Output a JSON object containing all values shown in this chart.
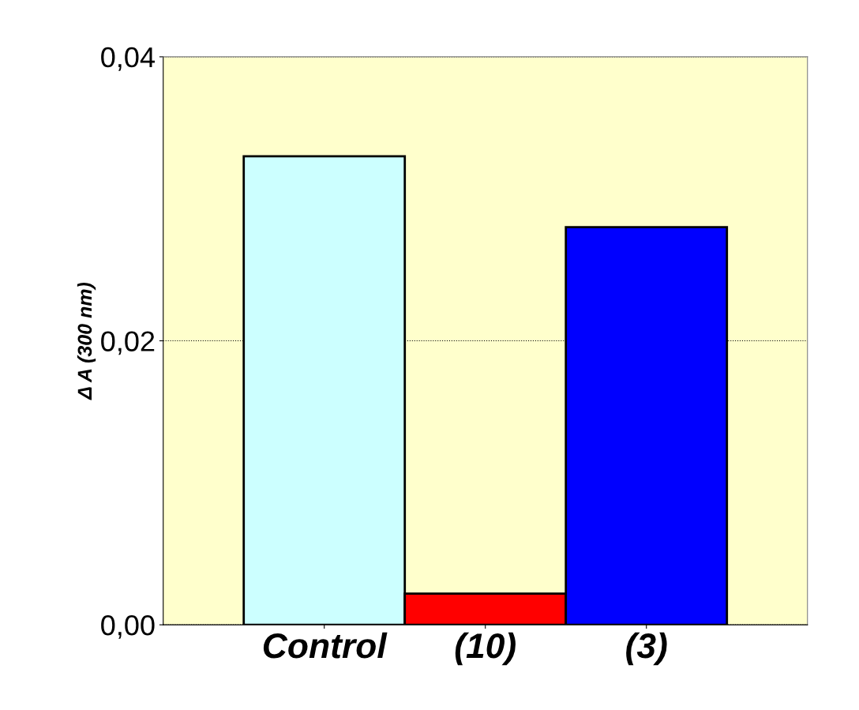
{
  "chart_data": {
    "type": "bar",
    "ylabel": "Δ A (300 nm)",
    "categories": [
      "Control",
      "(10)",
      "(3)"
    ],
    "values": [
      0.033,
      0.0022,
      0.028
    ],
    "colors": [
      "#ccffff",
      "#ff0000",
      "#0000ff"
    ],
    "ylim": [
      0,
      0.04
    ],
    "yticks": [
      {
        "value": 0,
        "label": "0,00"
      },
      {
        "value": 0.02,
        "label": "0,02"
      },
      {
        "value": 0.04,
        "label": "0,04"
      }
    ],
    "grid": "y"
  }
}
